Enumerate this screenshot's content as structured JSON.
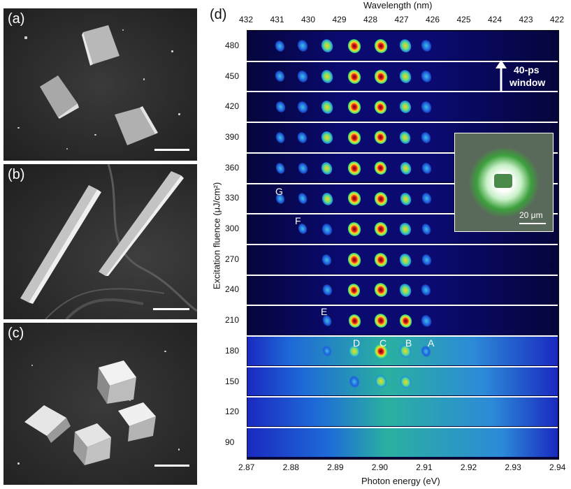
{
  "panels": {
    "a": {
      "label": "(a)"
    },
    "b": {
      "label": "(b)"
    },
    "c": {
      "label": "(c)"
    },
    "d": {
      "label": "(d)"
    }
  },
  "spectra": {
    "top_axis_title": "Wavelength (nm)",
    "top_ticks": [
      "432",
      "431",
      "430",
      "429",
      "428",
      "427",
      "426",
      "425",
      "424",
      "423",
      "422"
    ],
    "bottom_axis_title": "Photon energy (eV)",
    "bottom_ticks": [
      "2.87",
      "2.88",
      "2.89",
      "2.90",
      "2.91",
      "2.92",
      "2.93",
      "2.94"
    ],
    "y_axis_title": "Excitation fluence (μJ/cm²)",
    "fluences": [
      "480",
      "450",
      "420",
      "390",
      "360",
      "330",
      "300",
      "270",
      "240",
      "210",
      "180",
      "150",
      "120",
      "90"
    ],
    "annotations": {
      "window_line1": "40-ps",
      "window_line2": "window",
      "mode_G": "G",
      "mode_F": "F",
      "mode_E": "E",
      "mode_D": "D",
      "mode_C": "C",
      "mode_B": "B",
      "mode_A": "A"
    },
    "inset": {
      "scale_label": "20 μm"
    }
  },
  "colors": {
    "spectrum_background": "#0a0a6a",
    "peak_core": "#6b0000",
    "separator": "#ffffff"
  }
}
